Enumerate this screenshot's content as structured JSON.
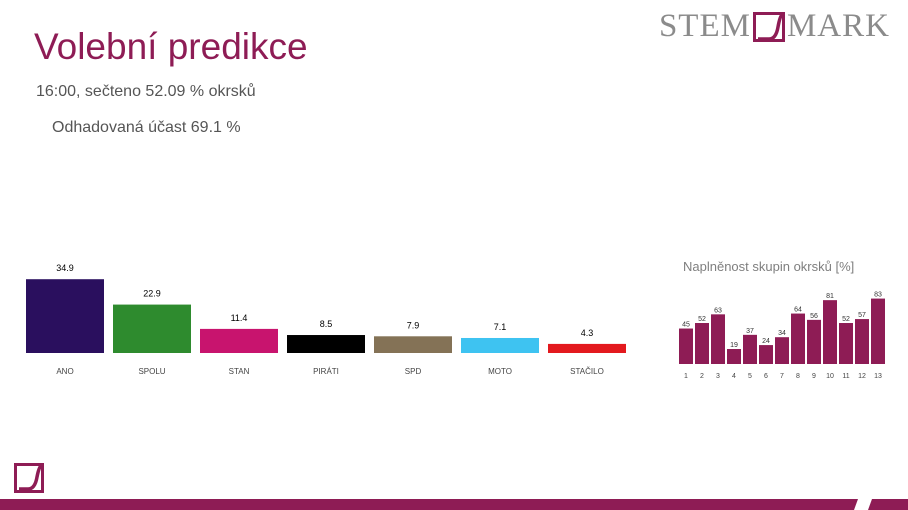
{
  "header": {
    "title": "Volební predikce",
    "status": "16:00, sečteno 52.09 % okrsků",
    "turnout": "Odhadovaná účast 69.1 %"
  },
  "brand": {
    "left": "STEM",
    "right": "MARK",
    "color": "#8e1c55"
  },
  "chart_data": [
    {
      "type": "bar",
      "categories": [
        "ANO",
        "SPOLU",
        "STAN",
        "PIRÁTI",
        "SPD",
        "MOTO",
        "STAČILO"
      ],
      "values": [
        34.9,
        22.9,
        11.4,
        8.5,
        7.9,
        7.1,
        4.3
      ],
      "colors": [
        "#2a0f5e",
        "#2e8b2e",
        "#c8146e",
        "#000000",
        "#847256",
        "#3ec3f1",
        "#e3191e"
      ],
      "ylim": [
        0,
        35
      ],
      "title": "",
      "xlabel": "",
      "ylabel": "",
      "grid": false
    },
    {
      "type": "bar",
      "title": "Naplněnost skupin okrsků [%]",
      "categories": [
        "1",
        "2",
        "3",
        "4",
        "5",
        "6",
        "7",
        "8",
        "9",
        "10",
        "11",
        "12",
        "13"
      ],
      "values": [
        45,
        52,
        63,
        19,
        37,
        24,
        34,
        64,
        56,
        81,
        52,
        57,
        83
      ],
      "color": "#8e1c55",
      "ylim": [
        0,
        85
      ],
      "xlabel": "",
      "ylabel": "",
      "grid": false
    }
  ]
}
